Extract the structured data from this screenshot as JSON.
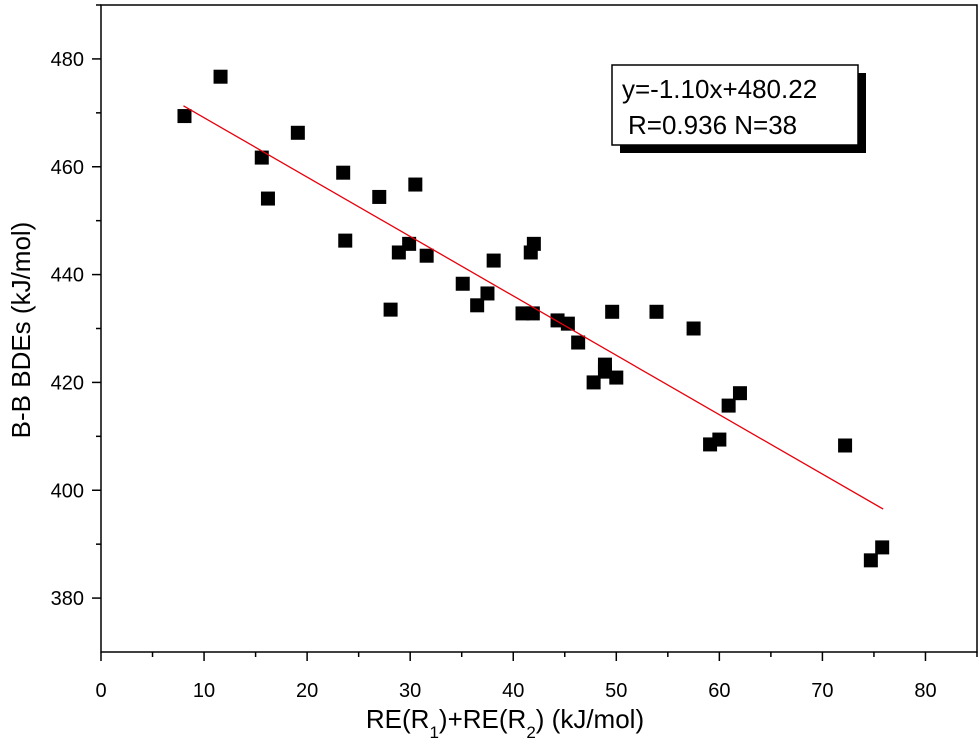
{
  "chart_data": {
    "type": "scatter",
    "x_label": [
      "RE(R",
      "1",
      ")+RE(R",
      "2",
      ") (kJ/mol)"
    ],
    "y_label": "B-B BDEs (kJ/mol)",
    "annotations": [
      "y=-1.10x+480.22",
      "R=0.936 N=38"
    ],
    "xlim": [
      0,
      85
    ],
    "ylim": [
      370,
      490
    ],
    "xticks": [
      0,
      10,
      20,
      30,
      40,
      50,
      60,
      70,
      80
    ],
    "yticks": [
      380,
      400,
      420,
      440,
      460,
      480
    ],
    "series": [
      {
        "color": "#000000",
        "x": [
          8.1,
          11.6,
          15.6,
          16.2,
          19.1,
          23.5,
          23.7,
          27.0,
          28.1,
          28.9,
          29.9,
          30.5,
          31.6,
          35.1,
          36.5,
          37.5,
          38.1,
          40.9,
          41.7,
          42.0,
          41.9,
          44.3,
          45.3,
          46.3,
          47.8,
          48.9,
          48.9,
          49.6,
          50.0,
          53.9,
          57.5,
          59.1,
          60.0,
          60.9,
          62.0,
          72.2,
          74.7,
          75.8
        ],
        "values": [
          469.4,
          476.7,
          461.7,
          454.1,
          466.3,
          458.9,
          446.3,
          454.4,
          433.5,
          444.1,
          445.7,
          456.7,
          443.5,
          438.3,
          434.3,
          436.5,
          442.6,
          432.8,
          444.1,
          445.7,
          432.8,
          431.5,
          430.9,
          427.4,
          420.0,
          423.3,
          422.0,
          433.1,
          420.9,
          433.1,
          430.0,
          408.5,
          409.4,
          415.7,
          418.0,
          408.3,
          387.0,
          389.4
        ]
      },
      {
        "color": "#e8000b",
        "x": [
          8.0,
          75.9
        ],
        "values": [
          471.3,
          396.5
        ]
      }
    ]
  }
}
